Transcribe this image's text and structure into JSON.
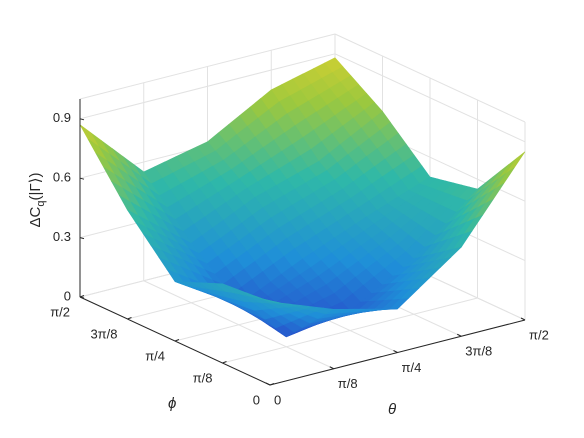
{
  "chart_data": {
    "type": "surface",
    "xlabel": "θ",
    "ylabel": "ϕ",
    "zlabel": [
      "ΔC",
      "q",
      "(|Γ⟩)"
    ],
    "x": [
      0,
      0.3927,
      0.7854,
      1.1781,
      1.5708
    ],
    "y": [
      0,
      0.3927,
      0.7854,
      1.1781,
      1.5708
    ],
    "z": [
      [
        0.42,
        0.3,
        0.22,
        0.45,
        0.85
      ],
      [
        0.4,
        0.05,
        0.1,
        0.28,
        0.55
      ],
      [
        0.3,
        0.1,
        0.25,
        0.38,
        0.5
      ],
      [
        0.55,
        0.3,
        0.45,
        0.55,
        0.72
      ],
      [
        0.87,
        0.55,
        0.62,
        0.8,
        0.88
      ]
    ],
    "xlim": [
      0,
      1.5708
    ],
    "ylim": [
      0,
      1.5708
    ],
    "zlim": [
      0,
      1
    ],
    "xticks": [
      0,
      {
        "value": 0.3927,
        "label": "π/8"
      },
      {
        "value": 0.7854,
        "label": "π/4"
      },
      {
        "value": 1.1781,
        "label": "3π/8"
      },
      {
        "value": 1.5708,
        "label": "π/2"
      }
    ],
    "yticks": [
      0,
      {
        "value": 0.3927,
        "label": "π/8"
      },
      {
        "value": 0.7854,
        "label": "π/4"
      },
      {
        "value": 1.1781,
        "label": "3π/8"
      },
      {
        "value": 1.5708,
        "label": "π/2"
      }
    ],
    "zticks": [
      0,
      0.3,
      0.6,
      0.9
    ],
    "grid": true,
    "colormap": [
      "#2a3fc8",
      "#1f8fd8",
      "#2fb8a8",
      "#9cc83e",
      "#f7d52a"
    ]
  }
}
